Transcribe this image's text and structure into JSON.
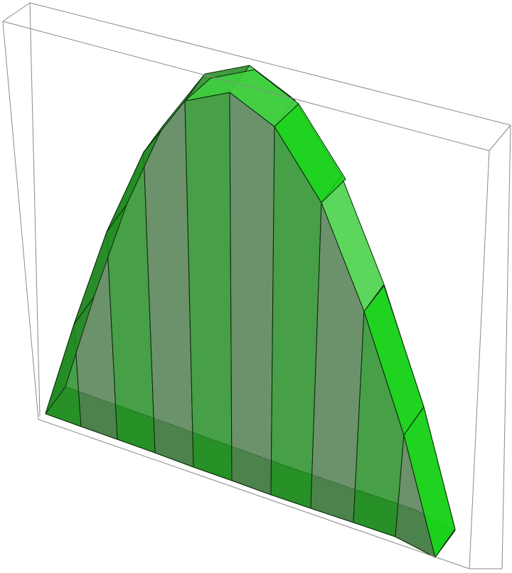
{
  "figure": {
    "description_type": "3d-solid",
    "colors": {
      "background": "#ffffff",
      "bounding_box": "#8a8a8a",
      "edge": "#0b2a0b",
      "face_front": "#1f8a1f",
      "face_front_alt": "#4c7a4c",
      "face_top": "#3fcf3f",
      "face_bright": "#12d212",
      "face_bottom": "#3aa53a"
    },
    "slab_count": 10
  }
}
